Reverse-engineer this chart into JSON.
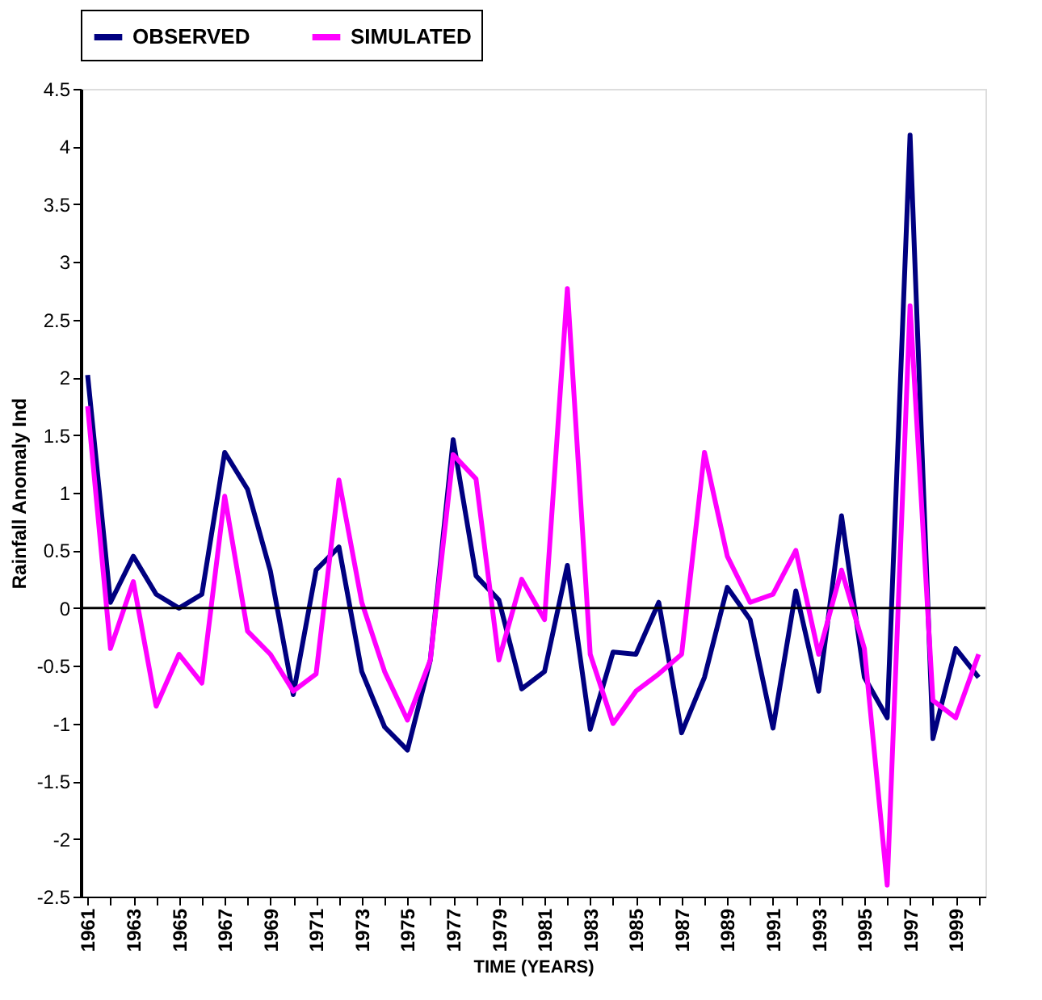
{
  "chart_data": {
    "type": "line",
    "xlabel": "TIME (YEARS)",
    "ylabel": "Rainfall Anomaly Ind",
    "categories": [
      "1961",
      null,
      "1963",
      null,
      "1965",
      null,
      "1967",
      null,
      "1969",
      null,
      "1971",
      null,
      "1973",
      null,
      "1975",
      null,
      "1977",
      null,
      "1979",
      null,
      "1981",
      null,
      "1983",
      null,
      "1985",
      null,
      "1987",
      null,
      "1989",
      null,
      "1991",
      null,
      "1993",
      null,
      "1995",
      null,
      "1997",
      null,
      "1999",
      null
    ],
    "series": [
      {
        "name": "OBSERVED",
        "color": "#000080",
        "values": [
          2.02,
          0.05,
          0.45,
          0.12,
          0.0,
          0.12,
          1.35,
          1.03,
          0.32,
          -0.75,
          0.33,
          0.53,
          -0.55,
          -1.03,
          -1.23,
          -0.45,
          1.46,
          0.28,
          0.07,
          -0.7,
          -0.55,
          0.37,
          -1.05,
          -0.38,
          -0.4,
          0.05,
          -1.08,
          -0.6,
          0.18,
          -0.1,
          -1.04,
          0.15,
          -0.72,
          0.8,
          -0.6,
          -0.95,
          4.1,
          -1.13,
          -0.35,
          -0.6
        ]
      },
      {
        "name": "SIMULATED",
        "color": "#ff00ff",
        "values": [
          1.75,
          -0.35,
          0.23,
          -0.85,
          -0.4,
          -0.65,
          0.97,
          -0.2,
          -0.4,
          -0.72,
          -0.57,
          1.11,
          0.05,
          -0.55,
          -0.97,
          -0.45,
          1.33,
          1.12,
          -0.45,
          0.25,
          -0.1,
          2.77,
          -0.4,
          -1.0,
          -0.72,
          -0.57,
          -0.4,
          1.35,
          0.45,
          0.05,
          0.12,
          0.5,
          -0.4,
          0.33,
          -0.35,
          -2.4,
          2.62,
          -0.8,
          -0.95,
          -0.4
        ]
      }
    ],
    "ylim": [
      -2.5,
      4.5
    ],
    "yticks": [
      -2.5,
      -2,
      -1.5,
      -1,
      -0.5,
      0,
      0.5,
      1,
      1.5,
      2,
      2.5,
      3,
      3.5,
      4,
      4.5
    ],
    "ref_lines": [
      {
        "axis": "y",
        "value": 0,
        "color": "#000000"
      }
    ],
    "grid": false,
    "legend": "top",
    "marker": "none",
    "line_style": "solid"
  }
}
